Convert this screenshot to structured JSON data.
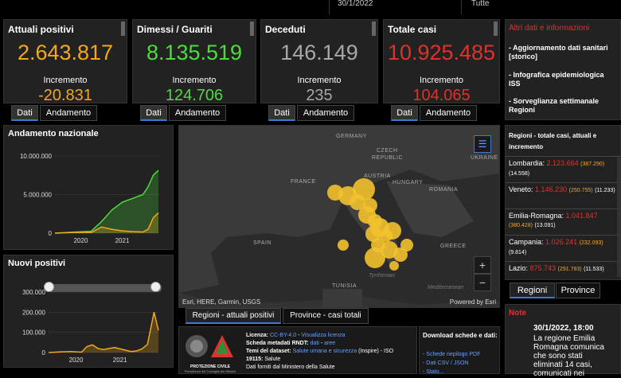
{
  "topbar": {
    "date": "30/1/2022",
    "filter": "Tutte"
  },
  "kpis": [
    {
      "title": "Attuali positivi",
      "value": "2.643.817",
      "inc_label": "Incremento",
      "inc": "-20.831",
      "color": "#f4a71d",
      "inc_color": "#f4a71d"
    },
    {
      "title": "Dimessi / Guariti",
      "value": "8.135.519",
      "inc_label": "Incremento",
      "inc": "124.706",
      "color": "#4cdc3c",
      "inc_color": "#4cdc3c"
    },
    {
      "title": "Deceduti",
      "value": "146.149",
      "inc_label": "Incremento",
      "inc": "235",
      "color": "#a8a8a8",
      "inc_color": "#a8a8a8"
    },
    {
      "title": "Totale casi",
      "value": "10.925.485",
      "inc_label": "Incremento",
      "inc": "104.065",
      "color": "#e0312a",
      "inc_color": "#e0312a"
    }
  ],
  "tab_labels": {
    "dati": "Dati",
    "andamento": "Andamento"
  },
  "andamento": {
    "title": "Andamento nazionale",
    "chart_data": {
      "type": "area",
      "title": "Andamento nazionale",
      "x_ticks": [
        "2020",
        "2021"
      ],
      "y_ticks": [
        "10.000.000",
        "5.000.000",
        "0"
      ],
      "ylim": [
        0,
        10000000
      ],
      "series": [
        {
          "color": "#4cdc3c",
          "x": [
            0,
            0.2,
            0.35,
            0.45,
            0.55,
            0.65,
            0.75,
            0.85,
            0.9,
            0.95,
            1.0
          ],
          "y": [
            0,
            150000,
            250000,
            1500000,
            3000000,
            4000000,
            4500000,
            5000000,
            6000000,
            7500000,
            8135519
          ]
        },
        {
          "color": "#f4a71d",
          "x": [
            0,
            0.2,
            0.35,
            0.45,
            0.55,
            0.65,
            0.75,
            0.85,
            0.9,
            0.95,
            1.0
          ],
          "y": [
            0,
            100000,
            80000,
            800000,
            500000,
            300000,
            200000,
            150000,
            500000,
            2000000,
            2643817
          ]
        }
      ]
    }
  },
  "nuovi": {
    "title": "Nuovi positivi",
    "chart_data": {
      "type": "area",
      "title": "Nuovi positivi",
      "x_ticks": [
        "2020",
        "2021"
      ],
      "y_ticks": [
        "300.000",
        "200.000",
        "100.000",
        "0"
      ],
      "ylim": [
        0,
        300000
      ],
      "series": [
        {
          "color": "#f4a71d",
          "x": [
            0,
            0.1,
            0.2,
            0.3,
            0.35,
            0.4,
            0.45,
            0.5,
            0.6,
            0.7,
            0.75,
            0.8,
            0.85,
            0.9,
            0.93,
            0.96,
            1.0
          ],
          "y": [
            0,
            3000,
            5000,
            2000,
            30000,
            38000,
            20000,
            15000,
            25000,
            12000,
            5000,
            8000,
            18000,
            40000,
            120000,
            200000,
            110000
          ]
        }
      ]
    }
  },
  "map": {
    "labels": [
      "GERMANY",
      "CZECH",
      "REPUBLIC",
      "UKRAINE",
      "FRANCE",
      "AUSTRIA",
      "HUNGARY",
      "ROMANIA",
      "SPAIN",
      "GREECE",
      "TUNISIA",
      "Tyrrhenian",
      "Mediterranean"
    ],
    "attribution": "Esri, HERE, Garmin, USGS",
    "powered": "Powered by Esri",
    "zoom_in": "+",
    "zoom_out": "−"
  },
  "map_tabs": {
    "t1": "Regioni - attuali positivi",
    "t2": "Province - casi totali"
  },
  "side": {
    "title": "Altri dati e informazioni",
    "links": [
      "- Aggiornamento dati sanitari [storico]",
      "- Infografica epidemiologica ISS",
      "- Sorveglianza settimanale Regioni"
    ]
  },
  "regioni": {
    "title": "Regioni - totale casi, attuali e incremento",
    "rows": [
      {
        "name": "Lombardia:",
        "total": "2.123.664",
        "attuali": "(387.290)",
        "inc": "(14.558)"
      },
      {
        "name": "Veneto:",
        "total": "1.146.230",
        "attuali": "(250.755)",
        "inc": "(11.233)"
      },
      {
        "name": "Emilia-Romagna:",
        "total": "1.041.847",
        "attuali": "(380.428)",
        "inc": "(13.091)"
      },
      {
        "name": "Campania:",
        "total": "1.026.241",
        "attuali": "(232.093)",
        "inc": "(9.814)"
      },
      {
        "name": "Lazio:",
        "total": "875.743",
        "attuali": "(291.783)",
        "inc": "(11.533)"
      }
    ],
    "tab_regioni": "Regioni",
    "tab_province": "Province"
  },
  "note": {
    "title": "Note",
    "date": "30/1/2022, 18:00",
    "text": "La regione Emilia Romagna comunica che sono stati eliminati 14 casi, comunicati nei"
  },
  "footer": {
    "logo": "PROTEZIONE CIVILE",
    "logo_sub": "Presidenza del Consiglio dei Ministri",
    "lic_label": "Licenza:",
    "lic_val": "CC-BY-4.0",
    "lic_link": "Visualizza licenza",
    "meta_label": "Scheda metadati RNDT:",
    "meta_val": "dati",
    "meta_val2": "aree",
    "temi_label": "Temi del dataset:",
    "temi_val": "Salute umana e sicurezza",
    "temi_extra": "(Inspire) - ISO",
    "iso_label": "19115:",
    "iso_val": "Salute",
    "cut": "Dati forniti dal Ministero della Salute",
    "dl_title": "Download schede e dati:",
    "dl1": "- Schede riepilogo PDF",
    "dl2": "- Dati CSV / JSON",
    "dl3": "- Stato..."
  }
}
